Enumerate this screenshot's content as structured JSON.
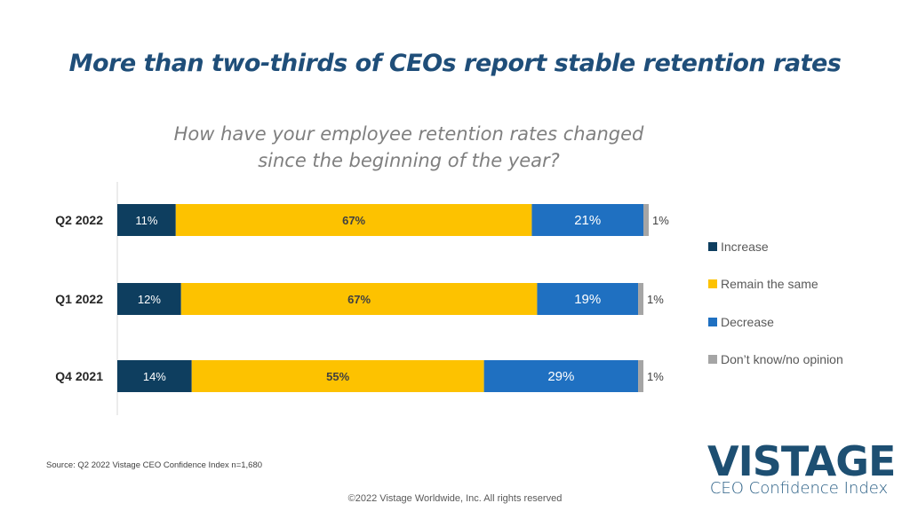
{
  "title": "More than two-thirds of CEOs report stable retention rates",
  "footer": {
    "source": "Source: Q2 2022 Vistage CEO Confidence Index n=1,680",
    "copyright": "©2022 Vistage Worldwide, Inc. All rights reserved"
  },
  "logo": {
    "main": "VISTAGE",
    "sub": "CEO Confidence Index"
  },
  "chart_data": {
    "type": "bar",
    "orientation": "horizontal",
    "stacked": true,
    "title": "How have your employee retention rates changed since the beginning of the year?",
    "subtitle_lines": [
      "How have your employee retention rates changed",
      "since the beginning of the year?"
    ],
    "categories": [
      "Q2 2022",
      "Q1 2022",
      "Q4 2021"
    ],
    "series": [
      {
        "name": "Increase",
        "color": "#0e3e5f",
        "label_color": "#ffffff",
        "values": [
          11,
          12,
          14
        ],
        "labels": [
          "11%",
          "12%",
          "14%"
        ]
      },
      {
        "name": "Remain the same",
        "color": "#fdc200",
        "label_color": "#404040",
        "label_bold": true,
        "values": [
          67,
          67,
          55
        ],
        "labels": [
          "67%",
          "67%",
          "55%"
        ]
      },
      {
        "name": "Decrease",
        "color": "#1f70c1",
        "label_color": "#ffffff",
        "values": [
          21,
          19,
          29
        ],
        "labels": [
          "21%",
          "19%",
          "29%"
        ]
      },
      {
        "name": "Don’t know/no opinion",
        "color": "#a5a5a5",
        "label_color": "#404040",
        "values": [
          1,
          1,
          1
        ],
        "labels": [
          "1%",
          "1%",
          "1%"
        ],
        "label_outside": true
      }
    ],
    "xlabel": "",
    "ylabel": "",
    "xlim": [
      0,
      100
    ],
    "grid": false,
    "legend": "right"
  }
}
